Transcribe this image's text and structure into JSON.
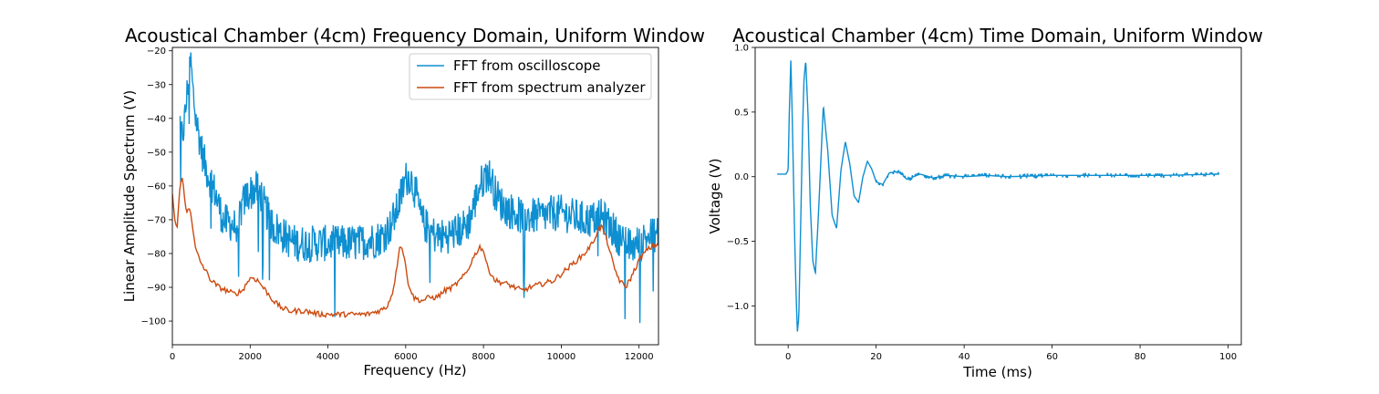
{
  "chart_data": [
    {
      "type": "line",
      "title": "Acoustical Chamber (4cm) Frequency Domain, Uniform Window",
      "xlabel": "Frequency (Hz)",
      "ylabel": "Linear Amplitude Spectrum (V)",
      "xlim": [
        0,
        12500
      ],
      "ylim": [
        -107,
        -19
      ],
      "xticks": [
        0,
        2000,
        4000,
        6000,
        8000,
        10000,
        12000
      ],
      "yticks": [
        -100,
        -90,
        -80,
        -70,
        -60,
        -50,
        -40,
        -30,
        -20
      ],
      "grid": false,
      "legend_position": "top-right",
      "series": [
        {
          "name": "FFT from oscilloscope",
          "color": "#0e8fd1",
          "noise": "dense",
          "x": [
            200,
            250,
            320,
            400,
            450,
            480,
            520,
            600,
            700,
            800,
            900,
            1000,
            1100,
            1200,
            1300,
            1400,
            1500,
            1600,
            1700,
            1800,
            1900,
            2000,
            2100,
            2200,
            2300,
            2400,
            2500,
            2600,
            2800,
            3000,
            3200,
            3400,
            3600,
            3800,
            4000,
            4200,
            4400,
            4600,
            4800,
            5000,
            5200,
            5400,
            5600,
            5750,
            5900,
            6000,
            6100,
            6200,
            6300,
            6400,
            6600,
            6800,
            7000,
            7200,
            7400,
            7600,
            7700,
            7800,
            7900,
            8000,
            8100,
            8200,
            8300,
            8500,
            8800,
            9000,
            9200,
            9500,
            9800,
            10000,
            10300,
            10600,
            10800,
            11000,
            11200,
            11400,
            11600,
            11800,
            12000,
            12200,
            12500
          ],
          "values": [
            -41,
            -46,
            -40,
            -30,
            -24,
            -24,
            -31,
            -40,
            -46,
            -52,
            -56,
            -59,
            -62,
            -66,
            -70,
            -71,
            -71,
            -72,
            -70,
            -66,
            -63,
            -62,
            -61,
            -61,
            -63,
            -67,
            -70,
            -72,
            -74,
            -76,
            -77,
            -77,
            -77,
            -77,
            -77,
            -77,
            -77,
            -77,
            -77,
            -76,
            -76,
            -75,
            -72,
            -68,
            -62,
            -58,
            -57,
            -60,
            -64,
            -70,
            -73,
            -75,
            -75,
            -74,
            -73,
            -71,
            -68,
            -64,
            -60,
            -58,
            -56,
            -58,
            -62,
            -66,
            -68,
            -69,
            -69,
            -69,
            -68,
            -68,
            -69,
            -70,
            -70,
            -69,
            -71,
            -74,
            -77,
            -78,
            -77,
            -75,
            -74
          ]
        },
        {
          "name": "FFT from spectrum analyzer",
          "color": "#cc4a0f",
          "noise": "light",
          "x": [
            0,
            60,
            120,
            160,
            200,
            240,
            280,
            330,
            380,
            430,
            480,
            530,
            580,
            640,
            700,
            800,
            900,
            1000,
            1200,
            1400,
            1600,
            1800,
            1950,
            2050,
            2200,
            2400,
            2600,
            2800,
            3000,
            3400,
            3800,
            4200,
            4600,
            5000,
            5300,
            5500,
            5650,
            5750,
            5850,
            5950,
            6050,
            6200,
            6400,
            6600,
            6800,
            7000,
            7200,
            7400,
            7600,
            7700,
            7800,
            7900,
            8000,
            8100,
            8300,
            8600,
            8800,
            9000,
            9200,
            9500,
            9800,
            10000,
            10200,
            10400,
            10600,
            10800,
            10950,
            11050,
            11200,
            11350,
            11500,
            11650,
            11800,
            12000,
            12200,
            12500
          ],
          "values": [
            -62,
            -70,
            -73,
            -66,
            -60,
            -56,
            -60,
            -66,
            -68,
            -66,
            -68,
            -73,
            -78,
            -80,
            -82,
            -84,
            -86,
            -88,
            -90,
            -91,
            -92,
            -91,
            -88,
            -87,
            -88,
            -91,
            -94,
            -96,
            -97,
            -97,
            -98,
            -98,
            -98,
            -98,
            -97,
            -96,
            -92,
            -86,
            -77,
            -80,
            -88,
            -93,
            -94,
            -93,
            -93,
            -91,
            -90,
            -88,
            -85,
            -82,
            -80,
            -78,
            -79,
            -84,
            -88,
            -89,
            -90,
            -91,
            -90,
            -89,
            -88,
            -86,
            -84,
            -82,
            -80,
            -77,
            -73,
            -72,
            -77,
            -84,
            -88,
            -90,
            -87,
            -82,
            -79,
            -77
          ]
        }
      ]
    },
    {
      "type": "line",
      "title": "Acoustical Chamber (4cm) Time Domain, Uniform Window",
      "xlabel": "Time (ms)",
      "ylabel": "Voltage (V)",
      "xlim": [
        -7.5,
        103
      ],
      "ylim": [
        -1.3,
        1.0
      ],
      "xticks": [
        0,
        20,
        40,
        60,
        80,
        100
      ],
      "yticks": [
        -1.0,
        -0.5,
        0.0,
        0.5,
        1.0
      ],
      "grid": false,
      "legend_position": "none",
      "series": [
        {
          "color": "#0e8fd1",
          "x": [
            -2.5,
            -0.5,
            0,
            0.3,
            0.6,
            0.9,
            1.2,
            1.5,
            1.8,
            2.1,
            2.4,
            2.7,
            3.0,
            3.3,
            3.6,
            4.0,
            4.5,
            5.0,
            5.6,
            6.2,
            7.0,
            8.0,
            9.0,
            10.0,
            11.0,
            12.0,
            13.0,
            14.0,
            15.0,
            16.0,
            17.0,
            18.0,
            19.0,
            20.0,
            21.5,
            23.0,
            25.0,
            27.0,
            30.0,
            33.0,
            36.0,
            40.0,
            45.0,
            50.0,
            60.0,
            70.0,
            85.0,
            98.0
          ],
          "values": [
            0.02,
            0.02,
            0.05,
            0.55,
            0.9,
            0.5,
            0.0,
            -0.5,
            -0.9,
            -1.2,
            -1.1,
            -0.6,
            -0.1,
            0.4,
            0.75,
            0.9,
            0.5,
            -0.2,
            -0.65,
            -0.75,
            -0.2,
            0.55,
            0.2,
            -0.3,
            -0.4,
            0.05,
            0.27,
            0.1,
            -0.15,
            -0.2,
            0.0,
            0.12,
            0.06,
            -0.04,
            -0.06,
            0.03,
            0.04,
            -0.02,
            0.02,
            -0.01,
            0.01,
            0.0,
            0.01,
            0.0,
            0.01,
            0.01,
            0.01,
            0.02
          ]
        }
      ]
    }
  ]
}
